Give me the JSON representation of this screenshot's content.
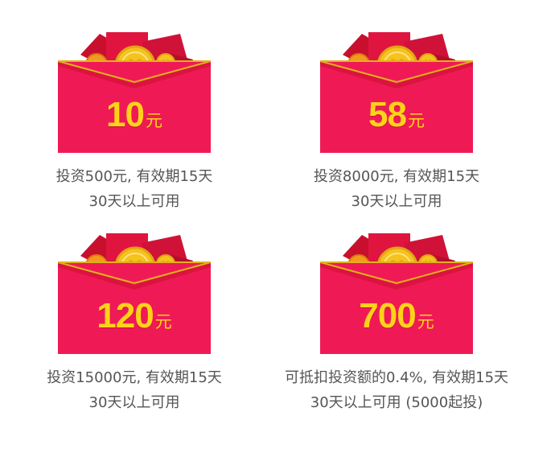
{
  "cards": [
    {
      "amount": "10",
      "unit": "元",
      "line1": "投资500元, 有效期15天",
      "line2": "30天以上可用"
    },
    {
      "amount": "58",
      "unit": "元",
      "line1": "投资8000元, 有效期15天",
      "line2": "30天以上可用"
    },
    {
      "amount": "120",
      "unit": "元",
      "line1": "投资15000元, 有效期15天",
      "line2": "30天以上可用"
    },
    {
      "amount": "700",
      "unit": "元",
      "line1": "可抵扣投资额的0.4%, 有效期15天",
      "line2": "30天以上可用 (5000起投)"
    }
  ],
  "icons": {
    "envelope": "red-envelope-icon",
    "coin": "gold-coin-icon",
    "currency_symbol": "¥"
  },
  "colors": {
    "envelope_red": "#ef1a55",
    "envelope_dark": "#c8102e",
    "amount_yellow": "#ffd21a",
    "coin_gold": "#f6c21c",
    "text_gray": "#555555"
  }
}
